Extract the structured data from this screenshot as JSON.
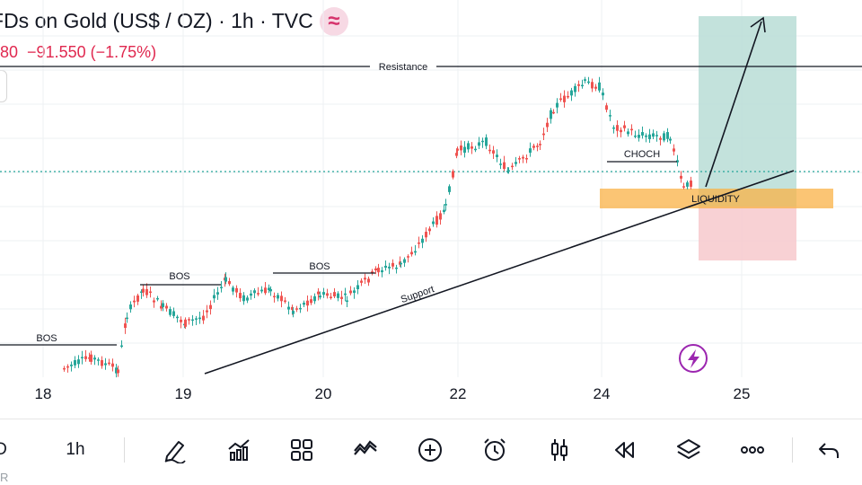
{
  "header": {
    "title": "Ds on Gold (US$ / OZ) · 1h · TVC",
    "title_prefix_cut": "F",
    "badge_icon": "wave-approx-icon",
    "price_fragment": "80",
    "change": "−91.550 (−1.75%)"
  },
  "chart_data": {
    "type": "candlestick",
    "x_tick_labels": [
      "18",
      "19",
      "20",
      "22",
      "24",
      "25"
    ],
    "annotations": [
      "Resistance",
      "BOS",
      "BOS",
      "BOS",
      "Support",
      "CHOCH",
      "LIQUIDITY"
    ],
    "colors": {
      "up": "#26a69a",
      "down": "#ef5350",
      "liquidity_zone": "#f9b246",
      "take_profit_zone": "#b9ddd6",
      "stop_loss_zone": "#f7c9cc",
      "current_price_line": "#26a69a"
    },
    "grid": true
  },
  "annotations": {
    "resistance": "Resistance",
    "bos1": "BOS",
    "bos2": "BOS",
    "bos3": "BOS",
    "support": "Support",
    "choch": "CHOCH",
    "liquidity": "LIQUIDITY"
  },
  "x_axis": {
    "t1": "18",
    "t2": "19",
    "t3": "20",
    "t4": "22",
    "t5": "24",
    "t6": "25"
  },
  "toolbar": {
    "timeframe_left": "D",
    "timeframe": "1h",
    "icons": [
      "pen-icon",
      "indicators-icon",
      "layout-grid-icon",
      "compare-icon",
      "add-icon",
      "alarm-icon",
      "candles-icon",
      "replay-icon",
      "layers-icon",
      "more-icon",
      "undo-icon"
    ]
  },
  "bottom_fragment": "R"
}
